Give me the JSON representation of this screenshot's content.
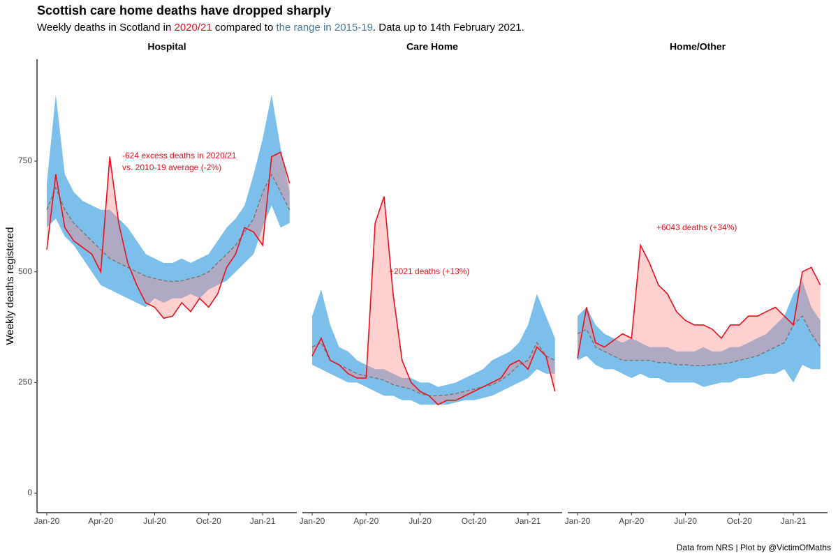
{
  "title": "Scottish care home deaths have dropped sharply",
  "subtitle": [
    "Weekly deaths in Scotland in ",
    "2020/21",
    " compared to ",
    "the range in 2015-19",
    ". Data up to 14th February 2021."
  ],
  "subtitle_colors": [
    "#000000",
    "#e8101c",
    "#000000",
    "#4a7a9b",
    "#000000"
  ],
  "caption": "Data from NRS | Plot by @VictimOfMaths",
  "ylabel": "Weekly deaths registered",
  "ylim": [
    -44,
    980
  ],
  "yticks": [
    0,
    250,
    500,
    750
  ],
  "xlim": [
    -0.544,
    13.9
  ],
  "xticks": [
    {
      "value": 0,
      "label": "Jan-20"
    },
    {
      "value": 3,
      "label": "Apr-20"
    },
    {
      "value": 6,
      "label": "Jul-20"
    },
    {
      "value": 9,
      "label": "Oct-20"
    },
    {
      "value": 12,
      "label": "Jan-21"
    }
  ],
  "chart_data": [
    {
      "type": "range-line",
      "title": "Hospital",
      "annotations": [
        "-624 excess deaths in 2020/21",
        "vs. 2010-19 average (-2%)"
      ],
      "x": [
        0,
        0.5,
        1,
        1.5,
        2,
        2.5,
        3,
        3.5,
        4,
        4.5,
        5,
        5.5,
        6,
        6.5,
        7,
        7.5,
        8,
        8.5,
        9,
        9.5,
        10,
        10.5,
        11,
        11.5,
        12,
        12.5,
        13,
        13.5
      ],
      "values": [
        550,
        720,
        600,
        570,
        555,
        540,
        500,
        760,
        610,
        520,
        470,
        430,
        420,
        395,
        400,
        430,
        410,
        440,
        420,
        450,
        510,
        540,
        600,
        590,
        560,
        760,
        770,
        700
      ],
      "average": [
        640,
        690,
        640,
        610,
        590,
        570,
        550,
        530,
        520,
        510,
        500,
        490,
        485,
        480,
        478,
        480,
        485,
        490,
        500,
        520,
        540,
        560,
        590,
        620,
        680,
        720,
        680,
        640
      ],
      "range_min": [
        600,
        620,
        580,
        560,
        530,
        500,
        470,
        460,
        450,
        440,
        430,
        420,
        440,
        430,
        440,
        440,
        450,
        440,
        460,
        470,
        480,
        500,
        520,
        540,
        600,
        650,
        600,
        610
      ],
      "range_max": [
        700,
        900,
        720,
        680,
        660,
        650,
        640,
        640,
        620,
        600,
        570,
        540,
        530,
        520,
        520,
        530,
        520,
        530,
        540,
        570,
        600,
        620,
        650,
        720,
        800,
        900,
        780,
        680
      ],
      "line_color": "#e8101c",
      "range_color": "#7bbfea",
      "excess_color": "#ff8a8a",
      "average_color": "#777777"
    },
    {
      "type": "range-line",
      "title": "Care Home",
      "annotations": [
        "+2021 deaths (+13%)"
      ],
      "x": [
        0,
        0.5,
        1,
        1.5,
        2,
        2.5,
        3,
        3.5,
        4,
        4.5,
        5,
        5.5,
        6,
        6.5,
        7,
        7.5,
        8,
        8.5,
        9,
        9.5,
        10,
        10.5,
        11,
        11.5,
        12,
        12.5,
        13,
        13.5
      ],
      "values": [
        310,
        350,
        300,
        290,
        270,
        260,
        260,
        610,
        670,
        450,
        300,
        250,
        230,
        220,
        200,
        210,
        210,
        220,
        230,
        240,
        250,
        260,
        290,
        300,
        280,
        330,
        310,
        230
      ],
      "average": [
        330,
        340,
        300,
        290,
        280,
        270,
        265,
        260,
        255,
        245,
        240,
        235,
        225,
        220,
        220,
        222,
        225,
        230,
        235,
        240,
        245,
        255,
        270,
        290,
        300,
        340,
        310,
        300
      ],
      "range_min": [
        290,
        280,
        270,
        260,
        250,
        250,
        240,
        230,
        220,
        220,
        210,
        210,
        200,
        200,
        200,
        200,
        205,
        210,
        210,
        215,
        220,
        230,
        240,
        250,
        260,
        280,
        270,
        270
      ],
      "range_max": [
        400,
        460,
        380,
        330,
        320,
        300,
        290,
        280,
        280,
        270,
        260,
        260,
        250,
        250,
        240,
        245,
        250,
        260,
        270,
        280,
        300,
        310,
        320,
        340,
        380,
        450,
        400,
        350
      ],
      "line_color": "#e8101c",
      "range_color": "#7bbfea",
      "excess_color": "#ff8a8a",
      "average_color": "#777777"
    },
    {
      "type": "range-line",
      "title": "Home/Other",
      "annotations": [
        "+6043 deaths (+34%)"
      ],
      "x": [
        0,
        0.5,
        1,
        1.5,
        2,
        2.5,
        3,
        3.5,
        4,
        4.5,
        5,
        5.5,
        6,
        6.5,
        7,
        7.5,
        8,
        8.5,
        9,
        9.5,
        10,
        10.5,
        11,
        11.5,
        12,
        12.5,
        13,
        13.5
      ],
      "values": [
        305,
        420,
        340,
        330,
        345,
        360,
        350,
        560,
        520,
        470,
        450,
        410,
        390,
        380,
        380,
        370,
        350,
        380,
        380,
        400,
        400,
        410,
        420,
        400,
        380,
        500,
        510,
        470
      ],
      "average": [
        360,
        370,
        330,
        320,
        310,
        300,
        300,
        300,
        300,
        295,
        295,
        290,
        290,
        288,
        288,
        290,
        292,
        295,
        300,
        305,
        310,
        320,
        330,
        340,
        380,
        400,
        360,
        330
      ],
      "range_min": [
        300,
        310,
        290,
        280,
        280,
        270,
        260,
        270,
        260,
        260,
        250,
        250,
        250,
        250,
        240,
        245,
        250,
        250,
        260,
        260,
        265,
        270,
        270,
        280,
        250,
        290,
        280,
        280
      ],
      "range_max": [
        400,
        420,
        380,
        360,
        350,
        340,
        350,
        340,
        330,
        330,
        330,
        320,
        320,
        320,
        330,
        320,
        320,
        330,
        330,
        340,
        350,
        360,
        380,
        400,
        450,
        480,
        420,
        390
      ],
      "line_color": "#e8101c",
      "range_color": "#7bbfea",
      "excess_color": "#ff8a8a",
      "average_color": "#777777"
    }
  ]
}
